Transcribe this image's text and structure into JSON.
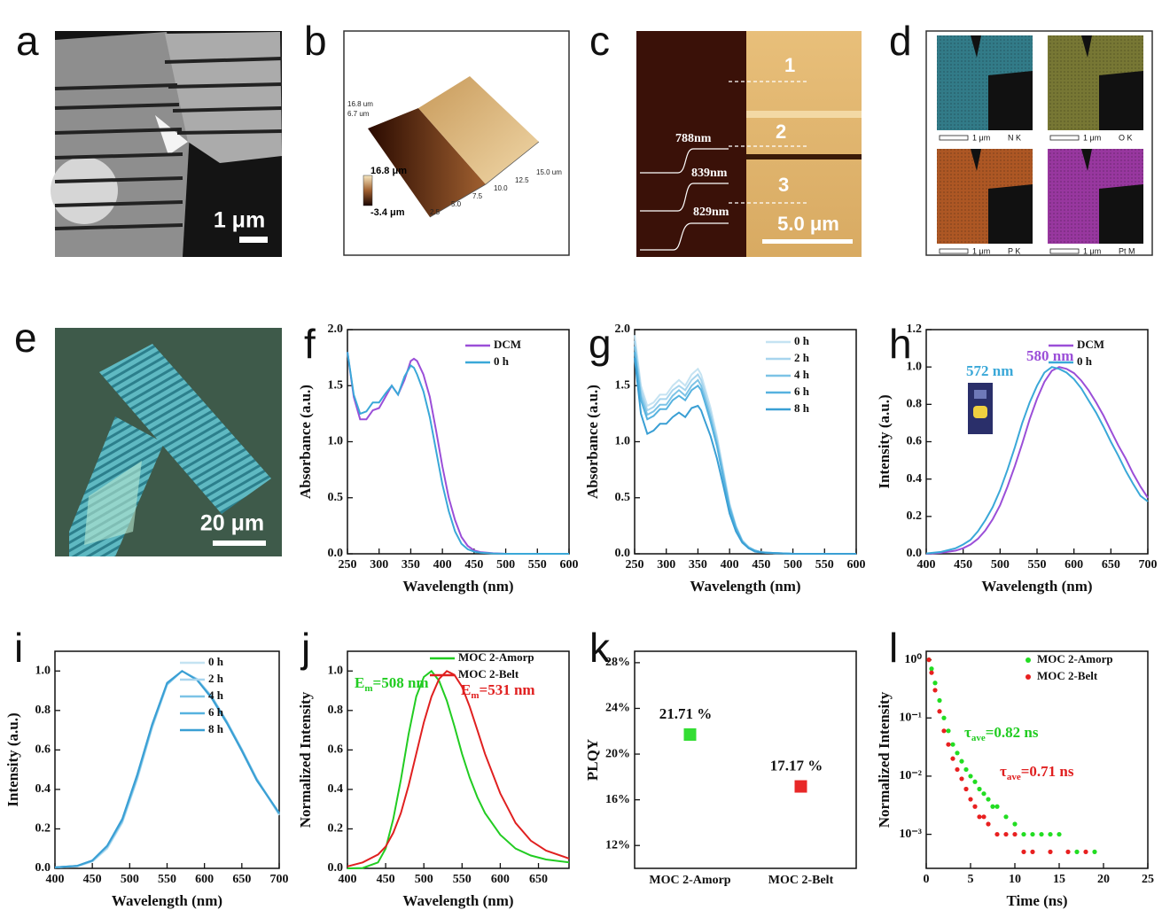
{
  "panels": {
    "a": {
      "label": "a",
      "scale_bar": "1 μm"
    },
    "b": {
      "label": "b",
      "color_max": "16.8 μm",
      "color_min": "-3.4 μm",
      "axis_ticks": [
        "2.5",
        "5.0",
        "7.5",
        "10.0",
        "12.5",
        "15.0 um"
      ],
      "z_ticks": [
        "16.8 um",
        "6.7 um"
      ]
    },
    "c": {
      "label": "c",
      "regions": [
        "1",
        "2",
        "3"
      ],
      "heights": [
        "788nm",
        "839nm",
        "829nm"
      ],
      "scale_bar": "5.0 μm"
    },
    "d": {
      "label": "d",
      "maps": [
        {
          "scale": "1 μm",
          "element": "N K"
        },
        {
          "scale": "1 μm",
          "element": "O K"
        },
        {
          "scale": "1 μm",
          "element": "P K"
        },
        {
          "scale": "1 μm",
          "element": "Pt M"
        }
      ]
    },
    "e": {
      "label": "e",
      "scale_bar": "20 μm"
    }
  },
  "chart_data": [
    {
      "type": "line",
      "panel_label": "f",
      "x_label": "Wavelength (nm)",
      "y_label": "Absorbance (a.u.)",
      "legend": "upper right",
      "x": [
        250,
        260,
        270,
        280,
        290,
        300,
        310,
        320,
        330,
        340,
        350,
        355,
        360,
        370,
        380,
        390,
        400,
        410,
        420,
        430,
        440,
        450,
        460,
        480,
        500,
        550,
        600
      ],
      "xlim": [
        250,
        600
      ],
      "xticks": [
        250,
        300,
        350,
        400,
        450,
        500,
        550,
        600
      ],
      "ylim": [
        0,
        2.0
      ],
      "yticks": [
        {
          "value": 0,
          "label": "0.0"
        },
        0.5,
        {
          "value": 1,
          "label": "1.0"
        },
        1.5,
        {
          "value": 2,
          "label": "2.0"
        }
      ],
      "series": [
        {
          "name": "DCM",
          "color": "#9b4fd8",
          "values": [
            1.8,
            1.4,
            1.2,
            1.2,
            1.28,
            1.3,
            1.4,
            1.5,
            1.42,
            1.55,
            1.72,
            1.74,
            1.72,
            1.6,
            1.4,
            1.1,
            0.78,
            0.5,
            0.3,
            0.15,
            0.07,
            0.03,
            0.015,
            0.005,
            0,
            0,
            0
          ]
        },
        {
          "name": "0 h",
          "color": "#3aa8d8",
          "values": [
            1.8,
            1.42,
            1.25,
            1.27,
            1.35,
            1.35,
            1.43,
            1.5,
            1.42,
            1.58,
            1.68,
            1.66,
            1.6,
            1.45,
            1.22,
            0.92,
            0.62,
            0.38,
            0.2,
            0.09,
            0.04,
            0.02,
            0.01,
            0.003,
            0,
            0,
            0
          ]
        }
      ]
    },
    {
      "type": "line",
      "panel_label": "g",
      "x_label": "Wavelength (nm)",
      "y_label": "Absorbance (a.u.)",
      "legend": "upper right",
      "x": [
        250,
        260,
        270,
        280,
        290,
        300,
        310,
        320,
        330,
        340,
        350,
        355,
        360,
        370,
        380,
        390,
        400,
        410,
        420,
        430,
        440,
        450,
        460,
        480,
        500,
        550,
        600
      ],
      "xlim": [
        250,
        600
      ],
      "xticks": [
        250,
        300,
        350,
        400,
        450,
        500,
        550,
        600
      ],
      "ylim": [
        0,
        2.0
      ],
      "yticks": [
        {
          "value": 0,
          "label": "0.0"
        },
        0.5,
        {
          "value": 1,
          "label": "1.0"
        },
        1.5,
        {
          "value": 2,
          "label": "2.0"
        }
      ],
      "series": [
        {
          "name": "0 h",
          "color": "#c5e3f2",
          "values": [
            1.95,
            1.5,
            1.32,
            1.35,
            1.42,
            1.42,
            1.5,
            1.55,
            1.5,
            1.6,
            1.65,
            1.6,
            1.5,
            1.3,
            1.05,
            0.75,
            0.45,
            0.25,
            0.12,
            0.06,
            0.03,
            0.015,
            0.01,
            0.005,
            0,
            0,
            0
          ]
        },
        {
          "name": "2 h",
          "color": "#a8d5ee",
          "values": [
            1.9,
            1.46,
            1.28,
            1.31,
            1.38,
            1.38,
            1.46,
            1.5,
            1.46,
            1.55,
            1.6,
            1.55,
            1.46,
            1.26,
            1.02,
            0.73,
            0.44,
            0.24,
            0.12,
            0.06,
            0.03,
            0.015,
            0.01,
            0.005,
            0,
            0,
            0
          ]
        },
        {
          "name": "4 h",
          "color": "#7cc3e6",
          "values": [
            1.85,
            1.41,
            1.24,
            1.27,
            1.33,
            1.33,
            1.41,
            1.46,
            1.41,
            1.5,
            1.55,
            1.5,
            1.41,
            1.22,
            0.99,
            0.71,
            0.42,
            0.24,
            0.11,
            0.06,
            0.03,
            0.014,
            0.01,
            0.005,
            0,
            0,
            0
          ]
        },
        {
          "name": "6 h",
          "color": "#56b2df",
          "values": [
            1.8,
            1.37,
            1.2,
            1.23,
            1.29,
            1.29,
            1.37,
            1.41,
            1.37,
            1.46,
            1.5,
            1.46,
            1.37,
            1.18,
            0.96,
            0.68,
            0.41,
            0.23,
            0.11,
            0.05,
            0.03,
            0.014,
            0.01,
            0.005,
            0,
            0,
            0
          ]
        },
        {
          "name": "8 h",
          "color": "#3a9fd4",
          "values": [
            1.75,
            1.25,
            1.07,
            1.1,
            1.16,
            1.16,
            1.22,
            1.26,
            1.22,
            1.3,
            1.32,
            1.28,
            1.2,
            1.05,
            0.85,
            0.61,
            0.36,
            0.2,
            0.1,
            0.05,
            0.02,
            0.012,
            0.008,
            0.004,
            0,
            0,
            0
          ]
        }
      ]
    },
    {
      "type": "line",
      "panel_label": "h",
      "x_label": "Wavelength (nm)",
      "y_label": "Intensity (a.u.)",
      "legend": "upper right",
      "x": [
        400,
        420,
        440,
        450,
        460,
        470,
        480,
        490,
        500,
        510,
        520,
        530,
        540,
        550,
        560,
        570,
        580,
        590,
        600,
        610,
        620,
        630,
        640,
        650,
        660,
        670,
        680,
        690,
        700
      ],
      "xlim": [
        400,
        700
      ],
      "xticks": [
        400,
        450,
        500,
        550,
        600,
        650,
        700
      ],
      "ylim": [
        0,
        1.2
      ],
      "yticks": [
        {
          "value": 0,
          "label": "0.0"
        },
        0.2,
        0.4,
        0.6,
        0.8,
        {
          "value": 1,
          "label": "1.0"
        },
        1.2
      ],
      "series": [
        {
          "name": "DCM",
          "color": "#9b4fd8",
          "values": [
            0,
            0.005,
            0.017,
            0.03,
            0.05,
            0.08,
            0.125,
            0.185,
            0.26,
            0.36,
            0.47,
            0.59,
            0.72,
            0.83,
            0.92,
            0.98,
            1.0,
            0.99,
            0.967,
            0.927,
            0.874,
            0.81,
            0.74,
            0.66,
            0.58,
            0.51,
            0.43,
            0.36,
            0.3
          ]
        },
        {
          "name": "0 h",
          "color": "#3aa8d8",
          "values": [
            0.002,
            0.01,
            0.03,
            0.05,
            0.075,
            0.12,
            0.18,
            0.25,
            0.34,
            0.45,
            0.57,
            0.7,
            0.81,
            0.9,
            0.97,
            1.0,
            0.99,
            0.97,
            0.935,
            0.885,
            0.82,
            0.755,
            0.68,
            0.6,
            0.525,
            0.445,
            0.375,
            0.31,
            0.28
          ]
        }
      ],
      "annotations": [
        {
          "text": "580 nm",
          "color": "#9b4fd8"
        },
        {
          "text": "572 nm",
          "color": "#3aa8d8"
        }
      ]
    },
    {
      "type": "line",
      "panel_label": "i",
      "x_label": "Wavelength (nm)",
      "y_label": "Intensity (a.u.)",
      "legend": "upper right",
      "x": [
        400,
        430,
        450,
        470,
        490,
        510,
        530,
        550,
        570,
        590,
        610,
        630,
        650,
        670,
        700
      ],
      "xlim": [
        400,
        700
      ],
      "xticks": [
        400,
        450,
        500,
        550,
        600,
        650,
        700
      ],
      "ylim": [
        0,
        1.1
      ],
      "yticks": [
        {
          "value": 0,
          "label": "0.0"
        },
        0.2,
        0.4,
        0.6,
        0.8,
        {
          "value": 1,
          "label": "1.0"
        }
      ],
      "series": [
        {
          "name": "0 h",
          "color": "#c5e3f2",
          "values": [
            0.004,
            0.01,
            0.034,
            0.1,
            0.23,
            0.45,
            0.71,
            0.93,
            1.0,
            0.96,
            0.87,
            0.74,
            0.6,
            0.45,
            0.27
          ]
        },
        {
          "name": "2 h",
          "color": "#a8d5ee",
          "values": [
            0.004,
            0.011,
            0.036,
            0.105,
            0.235,
            0.455,
            0.715,
            0.93,
            1.0,
            0.96,
            0.87,
            0.745,
            0.605,
            0.455,
            0.275
          ]
        },
        {
          "name": "4 h",
          "color": "#7cc3e6",
          "values": [
            0.005,
            0.012,
            0.038,
            0.11,
            0.24,
            0.46,
            0.72,
            0.935,
            1.0,
            0.955,
            0.865,
            0.74,
            0.6,
            0.45,
            0.275
          ]
        },
        {
          "name": "6 h",
          "color": "#56b2df",
          "values": [
            0.005,
            0.013,
            0.04,
            0.115,
            0.245,
            0.47,
            0.725,
            0.935,
            1.0,
            0.955,
            0.865,
            0.74,
            0.6,
            0.45,
            0.28
          ]
        },
        {
          "name": "8 h",
          "color": "#3a9fd4",
          "values": [
            0.005,
            0.013,
            0.04,
            0.115,
            0.25,
            0.475,
            0.73,
            0.94,
            1.0,
            0.955,
            0.86,
            0.735,
            0.595,
            0.445,
            0.28
          ]
        }
      ]
    },
    {
      "type": "line",
      "panel_label": "j",
      "x_label": "Wavelength (nm)",
      "y_label": "Normalized Intensity",
      "legend": "upper right",
      "x": [
        400,
        420,
        440,
        450,
        460,
        470,
        480,
        490,
        500,
        510,
        520,
        530,
        540,
        550,
        560,
        570,
        580,
        600,
        620,
        640,
        660,
        690
      ],
      "xlim": [
        400,
        690
      ],
      "xticks": [
        400,
        450,
        500,
        550,
        600,
        650
      ],
      "ylim": [
        0,
        1.1
      ],
      "yticks": [
        {
          "value": 0,
          "label": "0.0"
        },
        0.2,
        0.4,
        0.6,
        0.8,
        {
          "value": 1,
          "label": "1.0"
        }
      ],
      "series": [
        {
          "name": "MOC 2-Amorp",
          "color": "#22cc22",
          "values": [
            0,
            0.002,
            0.03,
            0.1,
            0.25,
            0.45,
            0.68,
            0.87,
            0.97,
            1.0,
            0.95,
            0.85,
            0.72,
            0.58,
            0.46,
            0.36,
            0.28,
            0.17,
            0.1,
            0.065,
            0.045,
            0.03
          ]
        },
        {
          "name": "MOC 2-Belt",
          "color": "#e02020",
          "values": [
            0.01,
            0.03,
            0.07,
            0.11,
            0.18,
            0.28,
            0.42,
            0.58,
            0.74,
            0.87,
            0.96,
            1.0,
            0.98,
            0.92,
            0.82,
            0.7,
            0.58,
            0.38,
            0.23,
            0.14,
            0.09,
            0.05
          ]
        }
      ],
      "annotations": [
        {
          "base": "E",
          "sub": "m",
          "text": "=508 nm",
          "color": "#22cc22"
        },
        {
          "base": "E",
          "sub": "m",
          "text": "=531 nm",
          "color": "#e02020"
        }
      ]
    },
    {
      "type": "scatter",
      "panel_label": "k",
      "y_label": "PLQY",
      "categories": [
        "MOC 2-Amorp",
        "MOC 2-Belt"
      ],
      "values": [
        21.71,
        17.17
      ],
      "value_labels": [
        "21.71 %",
        "17.17 %"
      ],
      "colors": [
        "#33dd33",
        "#e82828"
      ],
      "ylim": [
        10,
        29
      ],
      "yticks": [
        {
          "value": 12,
          "label": "12%"
        },
        {
          "value": 16,
          "label": "16%"
        },
        {
          "value": 20,
          "label": "20%"
        },
        {
          "value": 24,
          "label": "24%"
        },
        {
          "value": 28,
          "label": "28%"
        }
      ]
    },
    {
      "type": "scatter",
      "panel_label": "l",
      "x_label": "Time (ns)",
      "y_label": "Normalized Intensity",
      "legend": "upper right",
      "log_y": true,
      "xlim": [
        0,
        25
      ],
      "xticks": [
        0,
        5,
        10,
        15,
        20,
        25
      ],
      "ylim": [
        0.00026,
        1.4
      ],
      "yticks": [
        {
          "value": 1,
          "label": "10⁰"
        },
        {
          "value": 0.1,
          "label": "10⁻¹"
        },
        {
          "value": 0.01,
          "label": "10⁻²"
        },
        {
          "value": 0.001,
          "label": "10⁻³"
        }
      ],
      "series": [
        {
          "name": "MOC 2-Amorp",
          "color": "#22dd22",
          "x": [
            0.3,
            0.6,
            1,
            1.5,
            2,
            2.5,
            3,
            3.5,
            4,
            4.5,
            5,
            5.5,
            6,
            6.5,
            7,
            7.5,
            8,
            9,
            10,
            11,
            12,
            13,
            14,
            15,
            17,
            19
          ],
          "values": [
            1,
            0.7,
            0.4,
            0.2,
            0.1,
            0.06,
            0.035,
            0.025,
            0.018,
            0.013,
            0.01,
            0.008,
            0.006,
            0.005,
            0.004,
            0.003,
            0.003,
            0.002,
            0.0015,
            0.001,
            0.001,
            0.001,
            0.001,
            0.001,
            0.0005,
            0.0005
          ]
        },
        {
          "name": "MOC 2-Belt",
          "color": "#e82020",
          "x": [
            0.3,
            0.6,
            1,
            1.5,
            2,
            2.5,
            3,
            3.5,
            4,
            4.5,
            5,
            5.5,
            6,
            6.5,
            7,
            8,
            9,
            10,
            11,
            12,
            14,
            16,
            18
          ],
          "values": [
            1,
            0.6,
            0.3,
            0.13,
            0.06,
            0.035,
            0.02,
            0.013,
            0.009,
            0.006,
            0.004,
            0.003,
            0.002,
            0.002,
            0.0015,
            0.001,
            0.001,
            0.001,
            0.0005,
            0.0005,
            0.0005,
            0.0005,
            0.0005
          ]
        }
      ],
      "annotations": [
        {
          "base": "τ",
          "sub": "ave",
          "text": "=0.82 ns",
          "color": "#22cc22"
        },
        {
          "base": "τ",
          "sub": "ave",
          "text": "=0.71 ns",
          "color": "#e02020"
        }
      ]
    }
  ]
}
